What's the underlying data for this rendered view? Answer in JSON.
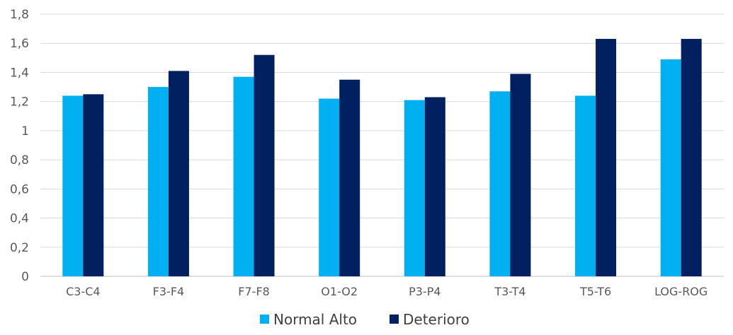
{
  "chart_data": {
    "type": "bar",
    "categories": [
      "C3-C4",
      "F3-F4",
      "F7-F8",
      "O1-O2",
      "P3-P4",
      "T3-T4",
      "T5-T6",
      "LOG-ROG"
    ],
    "series": [
      {
        "name": "Normal Alto",
        "color": "#00b0f0",
        "values": [
          1.24,
          1.3,
          1.37,
          1.22,
          1.21,
          1.27,
          1.24,
          1.49
        ]
      },
      {
        "name": "Deterioro",
        "color": "#002060",
        "values": [
          1.25,
          1.41,
          1.52,
          1.35,
          1.23,
          1.39,
          1.63,
          1.63
        ]
      }
    ],
    "ylim": [
      0,
      1.8
    ],
    "yticks": [
      "0",
      "0,2",
      "0,4",
      "0,6",
      "0,8",
      "1",
      "1,2",
      "1,4",
      "1,6",
      "1,8"
    ],
    "grid": true,
    "legend": "bottom",
    "title": "",
    "xlabel": "",
    "ylabel": ""
  }
}
